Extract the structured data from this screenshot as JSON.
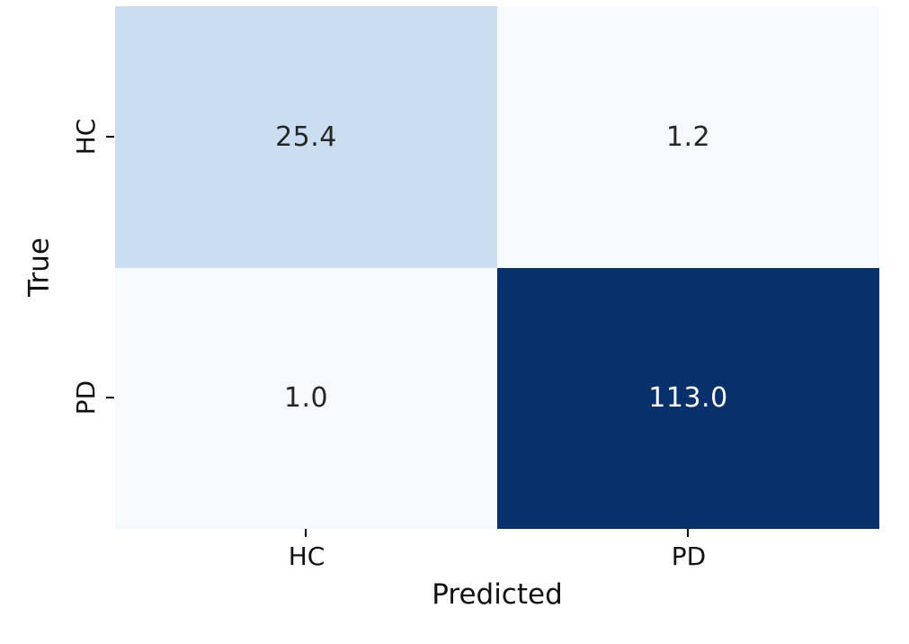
{
  "chart_data": {
    "type": "heatmap",
    "title": "",
    "xlabel": "Predicted",
    "ylabel": "True",
    "x_categories": [
      "HC",
      "PD"
    ],
    "y_categories": [
      "HC",
      "PD"
    ],
    "values": [
      [
        25.4,
        1.2
      ],
      [
        1.0,
        113.0
      ]
    ],
    "annotations": [
      [
        "25.4",
        "1.2"
      ],
      [
        "1.0",
        "113.0"
      ]
    ],
    "colormap": "Blues",
    "colorbar": false,
    "grid": false,
    "legend_position": "none",
    "cell_colors": [
      [
        "#cbdef1",
        "#f5fafe"
      ],
      [
        "#f6fafe",
        "#08306b"
      ]
    ],
    "text_colors": [
      [
        "#262626",
        "#262626"
      ],
      [
        "#262626",
        "#ffffff"
      ]
    ],
    "tick_color": "#000000",
    "label_color": "#111111",
    "background_color": "#ffffff"
  }
}
